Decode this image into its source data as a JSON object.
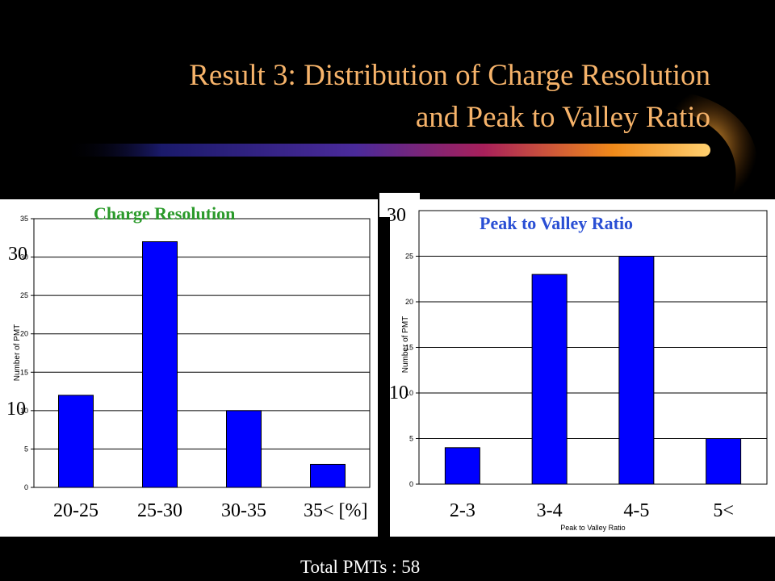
{
  "slide": {
    "title_line1": "Result 3: Distribution of Charge Resolution",
    "title_line2": "and Peak to Valley Ratio",
    "footer": "Total PMTs : 58"
  },
  "colors": {
    "background": "#000000",
    "title": "#f6b36a",
    "bar": "#0000ff",
    "left_chart_title": "#2a9a2a",
    "right_chart_title": "#2a4fd4",
    "footer": "#ffffff"
  },
  "chart_data": [
    {
      "type": "bar",
      "title": "Charge Resolution",
      "ylabel": "Number of PMT",
      "xlabel": "[%]",
      "categories": [
        "20-25",
        "25-30",
        "30-35",
        "35<"
      ],
      "values": [
        12,
        32,
        10,
        3
      ],
      "ylim": [
        0,
        35
      ],
      "yticks": [
        0,
        5,
        10,
        15,
        20,
        25,
        30,
        35
      ],
      "grid": true,
      "overlay_labels": [
        "30",
        "10"
      ]
    },
    {
      "type": "bar",
      "title": "Peak to Valley Ratio",
      "ylabel": "Number of PMT",
      "xlabel": "Peak to Valley Ratio",
      "categories": [
        "2-3",
        "3-4",
        "4-5",
        "5<"
      ],
      "values": [
        4,
        23,
        25,
        5
      ],
      "ylim": [
        0,
        30
      ],
      "yticks": [
        0,
        5,
        10,
        15,
        20,
        25
      ],
      "grid": true,
      "overlay_labels": [
        "30",
        "10"
      ]
    }
  ]
}
